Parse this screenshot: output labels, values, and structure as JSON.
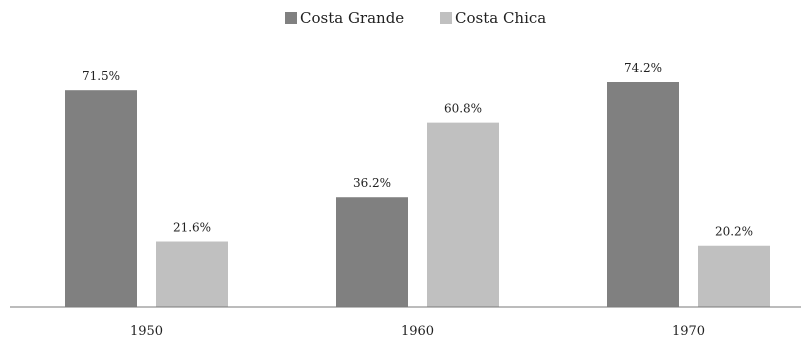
{
  "chart_data": {
    "type": "bar",
    "title": "",
    "xlabel": "",
    "ylabel": "",
    "categories": [
      "1950",
      "1960",
      "1970"
    ],
    "series": [
      {
        "name": "Costa Grande",
        "values": [
          71.5,
          36.2,
          74.2
        ],
        "labels": [
          "71.5%",
          "36.2%",
          "74.2%"
        ],
        "color": "#808080"
      },
      {
        "name": "Costa Chica",
        "values": [
          21.6,
          60.8,
          20.2
        ],
        "labels": [
          "21.6%",
          "60.8%",
          "20.2%"
        ],
        "color": "#c0c0c0"
      }
    ],
    "ylim": [
      0,
      100
    ],
    "grid": false,
    "legend": "top-center"
  }
}
